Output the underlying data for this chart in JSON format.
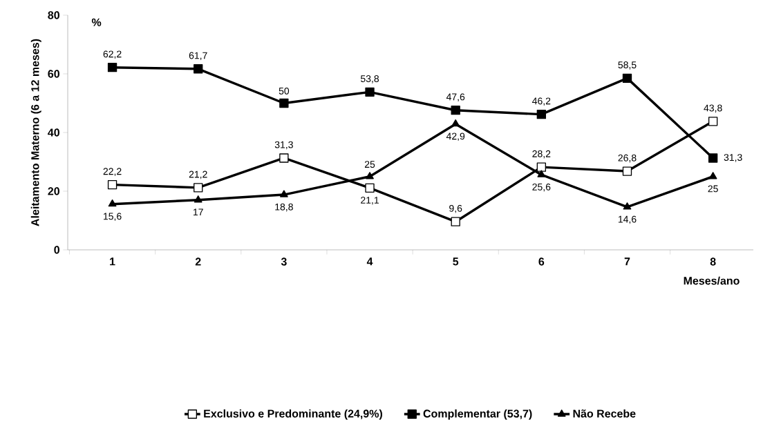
{
  "chart_data": {
    "type": "line",
    "xlabel": "Meses/ano",
    "ylabel": "Aleitamento Materno (6 a 12 meses)",
    "annotations": [
      "%"
    ],
    "categories": [
      "1",
      "2",
      "3",
      "4",
      "5",
      "6",
      "7",
      "8"
    ],
    "ylim": [
      0,
      80
    ],
    "yticks": [
      0,
      20,
      40,
      60,
      80
    ],
    "grid": false,
    "legend": "bottom",
    "line_style": "solid",
    "series": [
      {
        "name": "Exclusivo e Predominante (24,9%)",
        "color": "#000000",
        "marker": "square",
        "values": [
          22.2,
          21.2,
          31.3,
          21.1,
          9.6,
          28.2,
          26.8,
          43.8
        ],
        "value_labels": [
          "22,2",
          "21,2",
          "31,3",
          "21,1",
          "9,6",
          "28,2",
          "26,8",
          "43,8"
        ]
      },
      {
        "name": "Complementar (53,7)",
        "color": "#000000",
        "marker": "square",
        "values": [
          62.2,
          61.7,
          50,
          53.8,
          47.6,
          46.2,
          58.5,
          31.3
        ],
        "value_labels": [
          "62,2",
          "61,7",
          "50",
          "53,8",
          "47,6",
          "46,2",
          "58,5",
          "31,3"
        ]
      },
      {
        "name": "Não Recebe",
        "color": "#000000",
        "marker": "triangle",
        "values": [
          15.6,
          17,
          18.8,
          25,
          42.9,
          25.6,
          14.6,
          25
        ],
        "value_labels": [
          "15,6",
          "17",
          "18,8",
          "25",
          "42,9",
          "25,6",
          "14,6",
          "25"
        ]
      }
    ]
  }
}
